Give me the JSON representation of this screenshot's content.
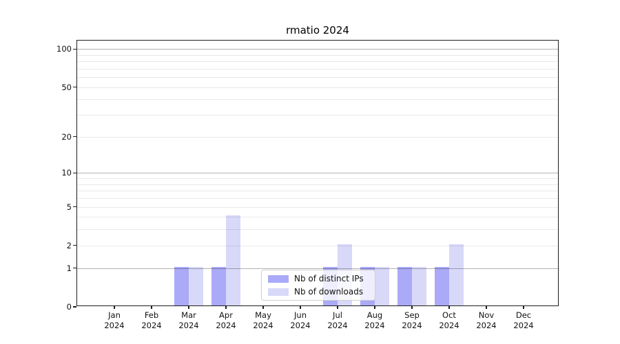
{
  "title": "rmatio 2024",
  "legend": {
    "items": [
      {
        "label": "Nb of distinct IPs",
        "color": "#aaaaf8"
      },
      {
        "label": "Nb of downloads",
        "color": "#d8d8f9"
      }
    ]
  },
  "y_axis": {
    "tick_labels": [
      "100",
      "50",
      "20",
      "10",
      "5",
      "2",
      "1",
      "0"
    ],
    "tick_values": [
      100,
      50,
      20,
      10,
      5,
      2,
      1,
      0
    ]
  },
  "chart_data": {
    "type": "bar",
    "title": "rmatio 2024",
    "categories": [
      "Jan 2024",
      "Feb 2024",
      "Mar 2024",
      "Apr 2024",
      "May 2024",
      "Jun 2024",
      "Jul 2024",
      "Aug 2024",
      "Sep 2024",
      "Oct 2024",
      "Nov 2024",
      "Dec 2024"
    ],
    "series": [
      {
        "name": "Nb of distinct IPs",
        "color": "#aaaaf8",
        "values": [
          0,
          0,
          1,
          1,
          0,
          0,
          1,
          1,
          1,
          1,
          0,
          0
        ]
      },
      {
        "name": "Nb of downloads",
        "color": "#d8d8f9",
        "values": [
          0,
          0,
          1,
          4,
          0,
          0,
          2,
          1,
          1,
          2,
          0,
          0
        ]
      }
    ],
    "xlabel": "",
    "ylabel": "",
    "yscale": "log10(value+1)",
    "ylim": [
      0,
      116.5
    ],
    "yticks": [
      0,
      1,
      2,
      5,
      10,
      20,
      50,
      100
    ],
    "grid_major_values": [
      1,
      10,
      100
    ],
    "grid_minor_values": [
      2,
      3,
      4,
      5,
      6,
      7,
      8,
      9,
      20,
      30,
      40,
      50,
      60,
      70,
      80,
      90
    ],
    "grid": "both",
    "legend_position": "lower center"
  }
}
